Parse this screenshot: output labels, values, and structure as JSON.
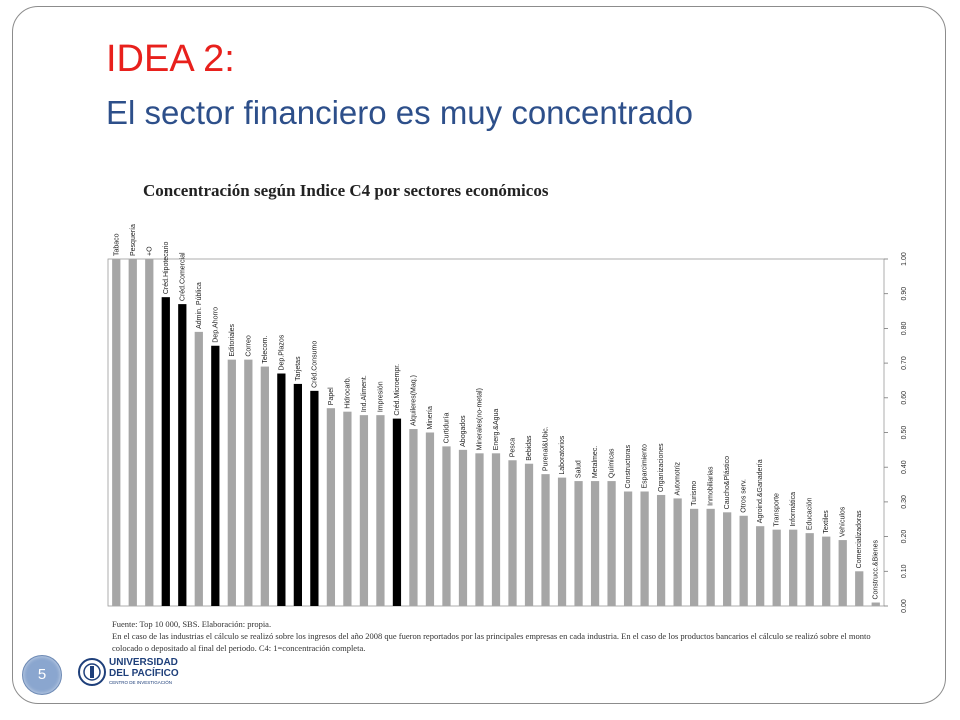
{
  "slide": {
    "title_line1": "IDEA 2:",
    "title_line2": "El sector financiero es muy concentrado",
    "page_number": "5"
  },
  "colors": {
    "title_red": "#e8201c",
    "title_blue": "#2d4f8a",
    "bar_gray": "#a6a6a6",
    "bar_highlight": "#000000",
    "badge": "#8aa6cf"
  },
  "chart_data": {
    "type": "bar",
    "title": "Concentración según Indice C4 por sectores económicos",
    "ylim": [
      0,
      1
    ],
    "y_axis_side": "right",
    "y_ticks": [
      "0.00",
      "0.10",
      "0.20",
      "0.30",
      "0.40",
      "0.50",
      "0.60",
      "0.70",
      "0.80",
      "0.90",
      "1.00"
    ],
    "grid": false,
    "categories": [
      "Tabaco",
      "Pesquería",
      "+O",
      "Créd.Hipotecario",
      "Créd.Comercial",
      "Admin. Pública",
      "Dep.Ahorro",
      "Editoriales",
      "Correo",
      "Telecom.",
      "Dep.Plazos",
      "Tarjetas",
      "Créd.Consumo",
      "Papel",
      "Hidrocarb.",
      "Ind.Aliment.",
      "Impresión",
      "Créd.Microempr.",
      "Alquileres(Maq.)",
      "Minería",
      "Curtiduría",
      "Abogados",
      "Minerales(no-metal)",
      "Energ.&Agua",
      "Pesca",
      "Bebidas",
      "Purenal&Ubic.",
      "Laboratorios",
      "Salud",
      "Metalmec.",
      "Químicas",
      "Constructoras",
      "Esparcimiento",
      "Organizaciones",
      "Automotriz",
      "Turismo",
      "Inmobiliarias",
      "Caucho&Plástico",
      "Otros serv.",
      "Agroind.&Ganadería",
      "Transporte",
      "Informática",
      "Educación",
      "Textiles",
      "Vehículos",
      "Comercializadoras",
      "Construcc.&Bienes"
    ],
    "values": [
      1.0,
      1.0,
      1.0,
      0.89,
      0.87,
      0.79,
      0.75,
      0.71,
      0.71,
      0.69,
      0.67,
      0.64,
      0.62,
      0.57,
      0.56,
      0.55,
      0.55,
      0.54,
      0.51,
      0.5,
      0.46,
      0.45,
      0.44,
      0.44,
      0.42,
      0.41,
      0.38,
      0.37,
      0.36,
      0.36,
      0.36,
      0.33,
      0.33,
      0.32,
      0.31,
      0.28,
      0.28,
      0.27,
      0.26,
      0.23,
      0.22,
      0.22,
      0.21,
      0.2,
      0.19,
      0.1,
      0.01
    ],
    "highlighted": [
      "Créd.Hipotecario",
      "Créd.Comercial",
      "Dep.Ahorro",
      "Dep.Plazos",
      "Tarjetas",
      "Créd.Consumo",
      "Créd.Microempr."
    ]
  },
  "notes": {
    "line1": "Fuente: Top 10 000, SBS. Elaboración: propia.",
    "line2": "En el caso de las industrias el cálculo se realizó sobre los ingresos del año 2008 que fueron reportados por las principales empresas en cada industria. En el caso de los productos bancarios el cálculo se realizó sobre el monto colocado o depositado al final del periodo. C4: 1=concentración completa."
  },
  "logo": {
    "name_line1": "UNIVERSIDAD",
    "name_line2": "DEL PACÍFICO",
    "subtitle": "CENTRO DE INVESTIGACIÓN"
  }
}
